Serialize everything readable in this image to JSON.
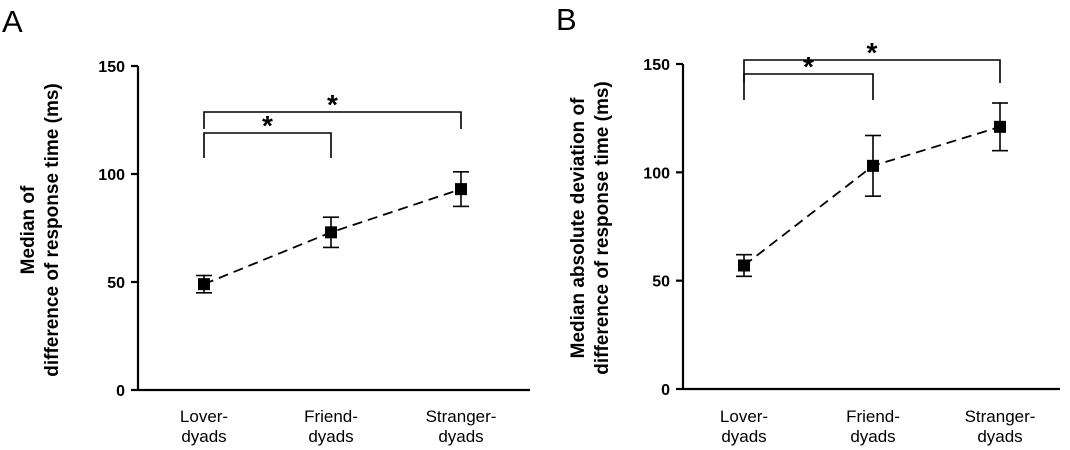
{
  "chart_data": [
    {
      "panel_label": "A",
      "type": "line",
      "ylabel_lines": [
        "Median of",
        "difference of response time (ms)"
      ],
      "ylim": [
        0,
        150
      ],
      "yticks": [
        0,
        50,
        100,
        150
      ],
      "categories": [
        [
          "Lover-",
          "dyads"
        ],
        [
          "Friend-",
          "dyads"
        ],
        [
          "Stranger-",
          "dyads"
        ]
      ],
      "series": [
        {
          "values": [
            49,
            73,
            93
          ],
          "error": [
            4,
            7,
            8
          ]
        }
      ],
      "significance": [
        {
          "from": 0,
          "to": 1,
          "label": "*"
        },
        {
          "from": 0,
          "to": 2,
          "label": "*"
        }
      ],
      "marker_color": "#000000"
    },
    {
      "panel_label": "B",
      "type": "line",
      "ylabel_lines": [
        "Median absolute deviation of",
        "difference of response time (ms)"
      ],
      "ylim": [
        0,
        150
      ],
      "yticks": [
        0,
        50,
        100,
        150
      ],
      "categories": [
        [
          "Lover-",
          "dyads"
        ],
        [
          "Friend-",
          "dyads"
        ],
        [
          "Stranger-",
          "dyads"
        ]
      ],
      "series": [
        {
          "values": [
            57,
            103,
            121
          ],
          "error": [
            5,
            14,
            11
          ]
        }
      ],
      "significance": [
        {
          "from": 0,
          "to": 1,
          "label": "*"
        },
        {
          "from": 0,
          "to": 2,
          "label": "*"
        }
      ],
      "marker_color": "#000000"
    }
  ]
}
